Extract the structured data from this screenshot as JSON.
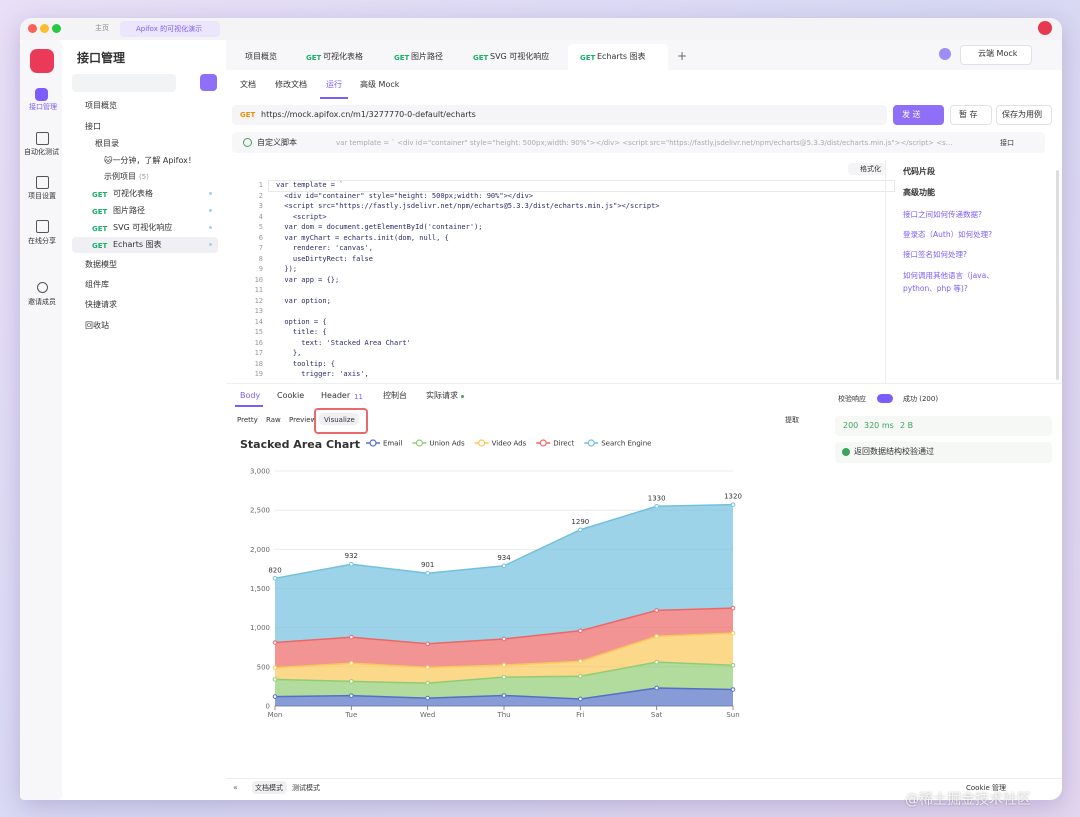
{
  "titlebar": {
    "home": "主页",
    "project_tab": "Apifox 的可视化演示"
  },
  "nav": [
    "接口管理",
    "自动化测试",
    "项目设置",
    "在线分享",
    "邀请成员"
  ],
  "tree": {
    "title": "接口管理",
    "overview": "项目概览",
    "apis": "接口",
    "root": "根目录",
    "intro": "🐱一分钟，了解 Apifox！",
    "examples": "示例项目",
    "example_count": "(5)",
    "endpoints": [
      {
        "method": "GET",
        "name": "可视化表格"
      },
      {
        "method": "GET",
        "name": "图片路径"
      },
      {
        "method": "GET",
        "name": "SVG 可视化响应"
      },
      {
        "method": "GET",
        "name": "Echarts 图表"
      }
    ],
    "sections": [
      "数据模型",
      "组件库",
      "快捷请求",
      "回收站"
    ]
  },
  "tabs": {
    "overview": "项目概览",
    "requests": [
      {
        "method": "GET",
        "name": "可视化表格"
      },
      {
        "method": "GET",
        "name": "图片路径"
      },
      {
        "method": "GET",
        "name": "SVG 可视化响应"
      },
      {
        "method": "GET",
        "name": "Echarts 图表"
      }
    ],
    "mock": "云端 Mock"
  },
  "subtabs": [
    "文档",
    "修改文档",
    "运行",
    "高级 Mock"
  ],
  "request": {
    "method": "GET",
    "url": "https://mock.apifox.cn/m1/3277770-0-default/echarts",
    "send": "发 送",
    "save_draft": "暂 存",
    "save_case": "保存为用例"
  },
  "script": {
    "label": "自定义脚本",
    "preview": "var template = ` <div id=\"container\" style=\"height: 500px;width: 90%\"></div> <script src=\"https://fastly.jsdelivr.net/npm/echarts@5.3.3/dist/echarts.min.js\"></script> <s...",
    "scope": "接口"
  },
  "editor": {
    "format": "格式化",
    "line_numbers": [
      1,
      2,
      3,
      4,
      5,
      6,
      7,
      8,
      9,
      10,
      11,
      12,
      13,
      14,
      15,
      16,
      17,
      18,
      19
    ],
    "lines": [
      "var template = `",
      "  <div id=\"container\" style=\"height: 500px;width: 90%\"></div>",
      "  <script src=\"https://fastly.jsdelivr.net/npm/echarts@5.3.3/dist/echarts.min.js\"></script>",
      "    <script>",
      "  var dom = document.getElementById('container');",
      "  var myChart = echarts.init(dom, null, {",
      "    renderer: 'canvas',",
      "    useDirtyRect: false",
      "  });",
      "  var app = {};",
      "",
      "  var option;",
      "",
      "  option = {",
      "    title: {",
      "      text: 'Stacked Area Chart'",
      "    },",
      "    tooltip: {",
      "      trigger: 'axis',"
    ]
  },
  "side_panel": {
    "snippets": "代码片段",
    "advanced": "高级功能",
    "links": [
      "接口之间如何传递数据?",
      "登录态（Auth）如何处理?",
      "接口签名如何处理?",
      "如何调用其他语言（java、python、php 等)?"
    ]
  },
  "response": {
    "tabs": [
      "Body",
      "Cookie",
      "Header",
      "控制台",
      "实际请求"
    ],
    "header_count": 11,
    "views": [
      "Pretty",
      "Raw",
      "Preview",
      "Visualize"
    ],
    "extract": "提取",
    "validate": "校验响应",
    "status": "成功 (200)",
    "code": 200,
    "time": "320 ms",
    "size": "2 B",
    "check": "返回数据结构校验通过"
  },
  "footer": {
    "modes": [
      "文档模式",
      "测试模式"
    ],
    "cookie": "Cookie 管理"
  },
  "watermark": "@稀土掘金技术社区",
  "chart_data": {
    "type": "stacked-area",
    "title": "Stacked Area Chart",
    "categories": [
      "Mon",
      "Tue",
      "Wed",
      "Thu",
      "Fri",
      "Sat",
      "Sun"
    ],
    "series": [
      {
        "name": "Email",
        "color": "#5470c6",
        "values": [
          120,
          132,
          101,
          134,
          90,
          230,
          210
        ]
      },
      {
        "name": "Union Ads",
        "color": "#91cc75",
        "values": [
          220,
          182,
          191,
          234,
          290,
          330,
          310
        ]
      },
      {
        "name": "Video Ads",
        "color": "#fac858",
        "values": [
          150,
          232,
          201,
          154,
          190,
          330,
          410
        ]
      },
      {
        "name": "Direct",
        "color": "#ee6666",
        "values": [
          320,
          332,
          301,
          334,
          390,
          330,
          320
        ]
      },
      {
        "name": "Search Engine",
        "color": "#73c0de",
        "values": [
          820,
          932,
          901,
          934,
          1290,
          1330,
          1320
        ]
      }
    ],
    "label_series": 4,
    "ylim": [
      0,
      3000
    ],
    "yticks": [
      0,
      500,
      {
        "value": 1000,
        "label": "1,000"
      },
      {
        "value": 1500,
        "label": "1,500"
      },
      {
        "value": 2000,
        "label": "2,000"
      },
      {
        "value": 2500,
        "label": "2,500"
      },
      {
        "value": 3000,
        "label": "3,000"
      }
    ],
    "grid": true
  }
}
